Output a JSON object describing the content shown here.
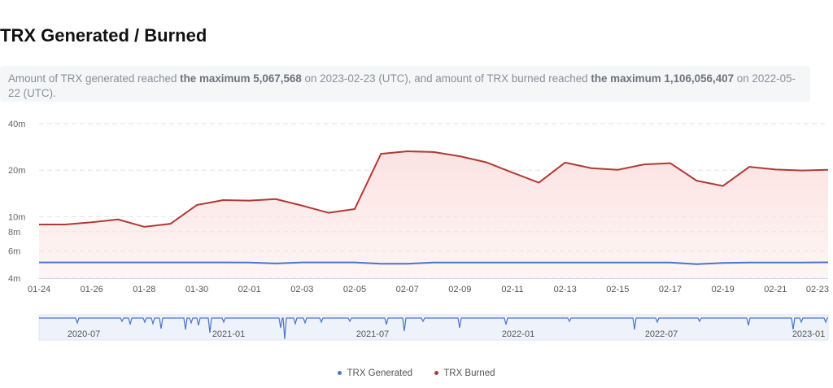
{
  "title": "TRX Generated / Burned",
  "summary": {
    "p1": "Amount of TRX generated reached ",
    "b1": "the maximum 5,067,568",
    "p2": " on 2023-02-23 (UTC), and amount of TRX burned reached ",
    "b2": "the maximum 1,106,056,407",
    "p3": " on 2022-05-22 (UTC)."
  },
  "colors": {
    "generated": "#4a75c8",
    "burned": "#b03a35",
    "burned_fill": "#fbe3e2"
  },
  "chart_data": {
    "type": "line",
    "yscale": "log",
    "ylim": [
      4000000,
      40000000
    ],
    "yticks": [
      {
        "label": "40m",
        "value": 40000000
      },
      {
        "label": "20m",
        "value": 20000000
      },
      {
        "label": "10m",
        "value": 10000000
      },
      {
        "label": "8m",
        "value": 8000000
      },
      {
        "label": "6m",
        "value": 6000000
      },
      {
        "label": "4m",
        "value": 4000000
      }
    ],
    "x": [
      "01-24",
      "01-25",
      "01-26",
      "01-27",
      "01-28",
      "01-29",
      "01-30",
      "01-31",
      "02-01",
      "02-02",
      "02-03",
      "02-04",
      "02-05",
      "02-06",
      "02-07",
      "02-08",
      "02-09",
      "02-10",
      "02-11",
      "02-12",
      "02-13",
      "02-14",
      "02-15",
      "02-16",
      "02-17",
      "02-18",
      "02-19",
      "02-20",
      "02-21",
      "02-22",
      "02-23"
    ],
    "xtick_labels": [
      "01-24",
      "01-26",
      "01-28",
      "01-30",
      "02-01",
      "02-03",
      "02-05",
      "02-07",
      "02-09",
      "02-11",
      "02-13",
      "02-15",
      "02-17",
      "02-19",
      "02-21",
      "02-23"
    ],
    "series": [
      {
        "name": "TRX Generated",
        "values": [
          5060000,
          5060000,
          5060000,
          5060000,
          5060000,
          5060000,
          5060000,
          5060000,
          5050000,
          4980000,
          5060000,
          5060000,
          5060000,
          4960000,
          4960000,
          5050000,
          5050000,
          5050000,
          5050000,
          5050000,
          5050000,
          5050000,
          5050000,
          5050000,
          5050000,
          4930000,
          5020000,
          5050000,
          5050000,
          5050000,
          5067568
        ]
      },
      {
        "name": "TRX Burned",
        "values": [
          8900000,
          8900000,
          9200000,
          9600000,
          8600000,
          9000000,
          11900000,
          12800000,
          12700000,
          13000000,
          11800000,
          10600000,
          11200000,
          25500000,
          26500000,
          26200000,
          24600000,
          22500000,
          19300000,
          16600000,
          22400000,
          20600000,
          20100000,
          21800000,
          22200000,
          17100000,
          15800000,
          21000000,
          20200000,
          19900000,
          20100000
        ]
      }
    ],
    "navigator_labels": [
      "2020-07",
      "2021-01",
      "2021-07",
      "2022-01",
      "2022-07",
      "2023-01"
    ],
    "legend": [
      "TRX Generated",
      "TRX Burned"
    ],
    "grid": true,
    "legend_position": "bottom"
  }
}
